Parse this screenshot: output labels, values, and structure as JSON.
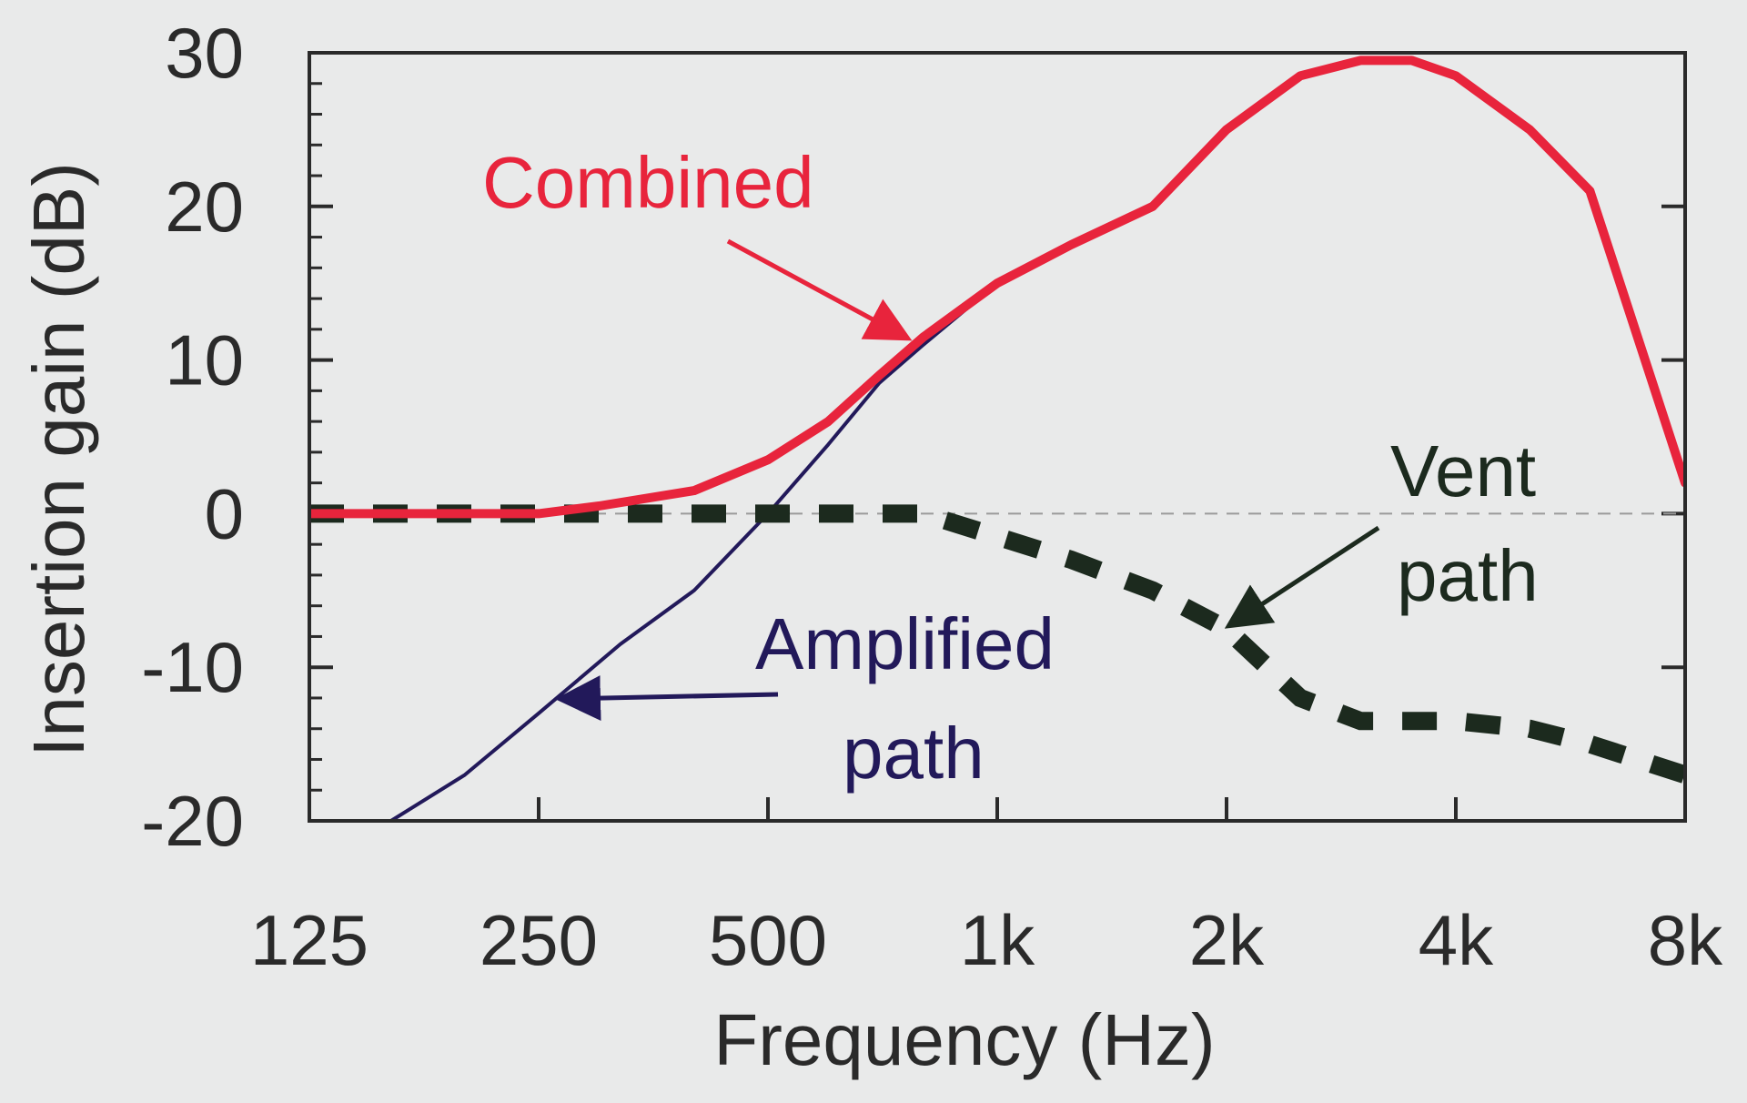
{
  "chart_data": {
    "type": "line",
    "title": "",
    "xlabel": "Frequency (Hz)",
    "ylabel": "Insertion gain (dB)",
    "x_scale": "log2",
    "xlim": [
      125,
      8000
    ],
    "ylim": [
      -20,
      30
    ],
    "x_ticks": [
      125,
      250,
      500,
      1000,
      2000,
      4000,
      8000
    ],
    "x_tick_labels": [
      "125",
      "250",
      "500",
      "1k",
      "2k",
      "4k",
      "8k"
    ],
    "y_ticks": [
      -20,
      -10,
      0,
      10,
      20,
      30
    ],
    "y_tick_labels": [
      "-20",
      "-10",
      "0",
      "10",
      "20",
      "30"
    ],
    "grid": false,
    "reference_line_y": 0,
    "colors": {
      "combined": "#e8243c",
      "amplified": "#22195a",
      "vent": "#1c2a1e",
      "axis": "#2a2a2a"
    },
    "series": [
      {
        "key": "combined",
        "x": [
          125,
          250,
          300,
          400,
          500,
          600,
          700,
          800,
          1000,
          1250,
          1600,
          2000,
          2500,
          3000,
          3500,
          4000,
          5000,
          6000,
          8000
        ],
        "y": [
          0,
          0,
          0.5,
          1.5,
          3.5,
          6,
          9,
          11.5,
          15,
          17.5,
          20,
          25,
          28.5,
          29.5,
          29.5,
          28.5,
          25,
          21,
          2
        ]
      },
      {
        "key": "amplified",
        "x": [
          160,
          200,
          250,
          320,
          400,
          500,
          600,
          700,
          800,
          1000,
          1250,
          1600,
          2000,
          2500,
          3000,
          3500,
          4000,
          5000,
          6000,
          8000
        ],
        "y": [
          -20,
          -17,
          -13,
          -8.5,
          -5,
          0,
          4.5,
          8.5,
          11,
          15,
          17.5,
          20,
          25,
          28.5,
          29.5,
          29.5,
          28.5,
          25,
          21,
          2
        ]
      },
      {
        "key": "vent",
        "x": [
          125,
          500,
          800,
          1000,
          1250,
          1600,
          2000,
          2500,
          3000,
          4000,
          5000,
          6000,
          8000
        ],
        "y": [
          0,
          0,
          0,
          -1.5,
          -3,
          -5,
          -7.5,
          -12,
          -13.5,
          -13.5,
          -14,
          -15,
          -17
        ]
      }
    ],
    "annotations": [
      {
        "key": "combined",
        "text": "Combined",
        "color": "#e8243c"
      },
      {
        "key": "vent",
        "lines": [
          "Vent",
          "path"
        ],
        "color": "#1c2a1e"
      },
      {
        "key": "amplified",
        "lines": [
          "Amplified",
          "path"
        ],
        "color": "#22195a"
      }
    ]
  }
}
